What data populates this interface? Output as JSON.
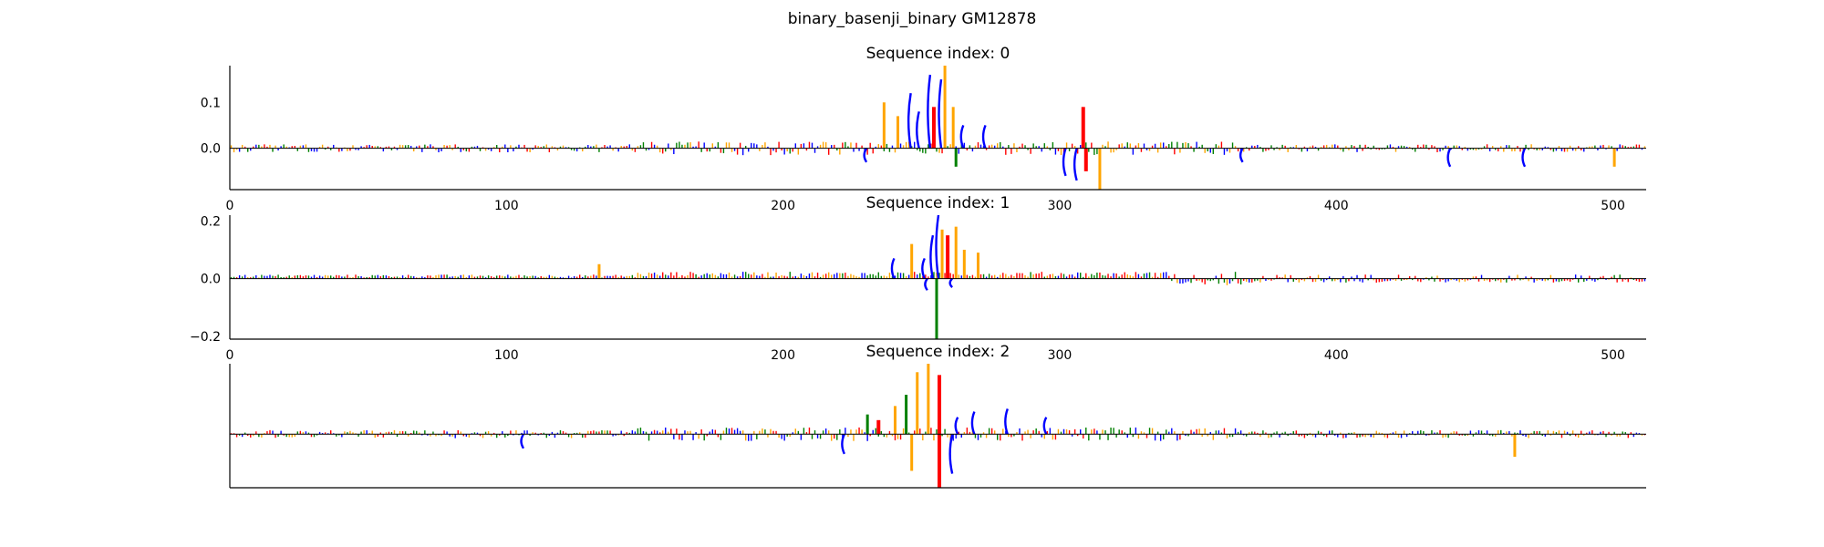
{
  "figure": {
    "title": "binary_basenji_binary GM12878"
  },
  "colors": {
    "A": "#008000",
    "C": "#0000ff",
    "G": "#ffa500",
    "T": "#ff0000",
    "axis": "#000000"
  },
  "chart_data": [
    {
      "type": "sequence-logo",
      "title": "Sequence index: 0",
      "xlim": [
        0,
        512
      ],
      "ylim": [
        -0.09,
        0.18
      ],
      "xticks": [
        "0",
        "100",
        "200",
        "300",
        "400",
        "500"
      ],
      "yticks": [
        {
          "value": 0.1,
          "label": "0.1"
        },
        {
          "value": 0.0,
          "label": "0.0"
        }
      ],
      "show_xticks": true,
      "peaks": [
        {
          "x": 236,
          "v": 0.1,
          "base": "G"
        },
        {
          "x": 241,
          "v": 0.07,
          "base": "G"
        },
        {
          "x": 245,
          "v": 0.12,
          "base": "C"
        },
        {
          "x": 248,
          "v": 0.08,
          "base": "C"
        },
        {
          "x": 252,
          "v": 0.16,
          "base": "C"
        },
        {
          "x": 254,
          "v": 0.09,
          "base": "T"
        },
        {
          "x": 256,
          "v": 0.15,
          "base": "C"
        },
        {
          "x": 258,
          "v": 0.18,
          "base": "G"
        },
        {
          "x": 261,
          "v": 0.09,
          "base": "G"
        },
        {
          "x": 264,
          "v": 0.05,
          "base": "C"
        },
        {
          "x": 272,
          "v": 0.05,
          "base": "C"
        },
        {
          "x": 308,
          "v": 0.09,
          "base": "T"
        },
        {
          "x": 229,
          "v": -0.03,
          "base": "C"
        },
        {
          "x": 262,
          "v": -0.04,
          "base": "A"
        },
        {
          "x": 301,
          "v": -0.06,
          "base": "C"
        },
        {
          "x": 305,
          "v": -0.07,
          "base": "C"
        },
        {
          "x": 309,
          "v": -0.05,
          "base": "T"
        },
        {
          "x": 314,
          "v": -0.09,
          "base": "G"
        },
        {
          "x": 365,
          "v": -0.03,
          "base": "C"
        },
        {
          "x": 440,
          "v": -0.04,
          "base": "C"
        },
        {
          "x": 467,
          "v": -0.04,
          "base": "C"
        },
        {
          "x": 500,
          "v": -0.04,
          "base": "G"
        }
      ]
    },
    {
      "type": "sequence-logo",
      "title": "Sequence index: 1",
      "xlim": [
        0,
        512
      ],
      "ylim": [
        -0.21,
        0.22
      ],
      "xticks": [
        "0",
        "100",
        "200",
        "300",
        "400",
        "500"
      ],
      "yticks": [
        {
          "value": 0.2,
          "label": "0.2"
        },
        {
          "value": 0.0,
          "label": "0.0"
        },
        {
          "value": -0.2,
          "label": "−0.2"
        }
      ],
      "show_xticks": true,
      "peaks": [
        {
          "x": 133,
          "v": 0.05,
          "base": "G"
        },
        {
          "x": 239,
          "v": 0.07,
          "base": "C"
        },
        {
          "x": 246,
          "v": 0.12,
          "base": "G"
        },
        {
          "x": 250,
          "v": 0.07,
          "base": "C"
        },
        {
          "x": 253,
          "v": 0.15,
          "base": "C"
        },
        {
          "x": 255,
          "v": 0.22,
          "base": "C"
        },
        {
          "x": 257,
          "v": 0.17,
          "base": "G"
        },
        {
          "x": 259,
          "v": 0.15,
          "base": "T"
        },
        {
          "x": 262,
          "v": 0.18,
          "base": "G"
        },
        {
          "x": 265,
          "v": 0.1,
          "base": "G"
        },
        {
          "x": 270,
          "v": 0.09,
          "base": "G"
        },
        {
          "x": 251,
          "v": -0.04,
          "base": "C"
        },
        {
          "x": 255,
          "v": -0.21,
          "base": "A"
        },
        {
          "x": 260,
          "v": -0.03,
          "base": "C"
        }
      ]
    },
    {
      "type": "sequence-logo",
      "title": "Sequence index: 2",
      "xlim": [
        0,
        512
      ],
      "ylim": [
        -0.19,
        0.25
      ],
      "xticks": [],
      "yticks": [],
      "show_xticks": false,
      "peaks": [
        {
          "x": 230,
          "v": 0.07,
          "base": "A"
        },
        {
          "x": 234,
          "v": 0.05,
          "base": "T"
        },
        {
          "x": 240,
          "v": 0.1,
          "base": "G"
        },
        {
          "x": 244,
          "v": 0.14,
          "base": "A"
        },
        {
          "x": 248,
          "v": 0.22,
          "base": "G"
        },
        {
          "x": 252,
          "v": 0.25,
          "base": "G"
        },
        {
          "x": 256,
          "v": 0.21,
          "base": "T"
        },
        {
          "x": 262,
          "v": 0.06,
          "base": "C"
        },
        {
          "x": 268,
          "v": 0.08,
          "base": "C"
        },
        {
          "x": 280,
          "v": 0.09,
          "base": "C"
        },
        {
          "x": 294,
          "v": 0.06,
          "base": "C"
        },
        {
          "x": 221,
          "v": -0.07,
          "base": "C"
        },
        {
          "x": 246,
          "v": -0.13,
          "base": "G"
        },
        {
          "x": 256,
          "v": -0.19,
          "base": "T"
        },
        {
          "x": 260,
          "v": -0.14,
          "base": "C"
        },
        {
          "x": 464,
          "v": -0.08,
          "base": "G"
        },
        {
          "x": 105,
          "v": -0.05,
          "base": "C"
        }
      ]
    }
  ]
}
